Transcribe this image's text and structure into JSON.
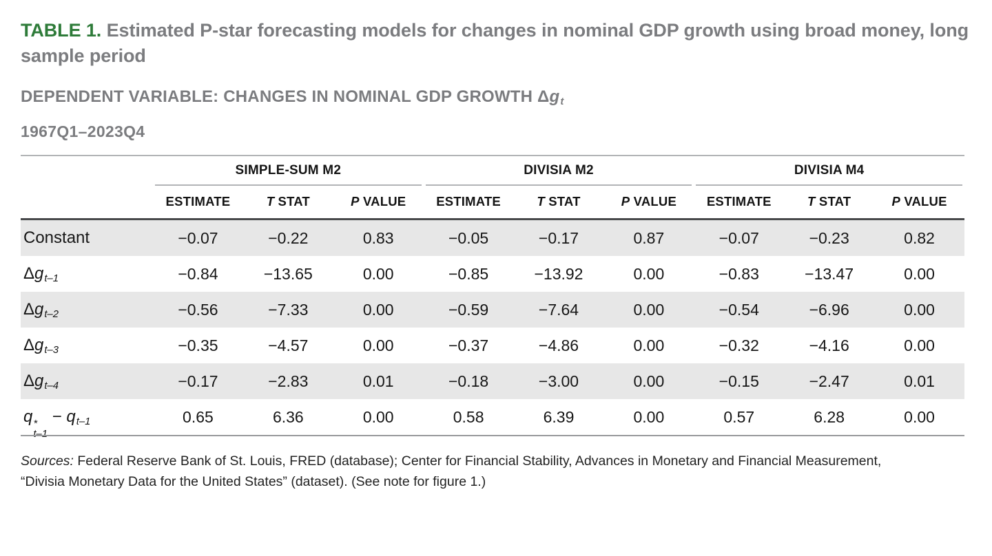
{
  "colors": {
    "accent_green": "#2e7b39",
    "heading_gray": "#7b7c7f",
    "stripe_gray": "#e7e7e7",
    "rule_light": "#b2b4b6",
    "rule_dark": "#48494b",
    "rule_bottom": "#97999c",
    "text_dark": "#1e1e1e"
  },
  "title": {
    "label": "TABLE 1.",
    "text": "Estimated P-star forecasting models for changes in nominal GDP growth using broad money, long sample period"
  },
  "dependent_variable": {
    "text": "DEPENDENT VARIABLE: CHANGES IN NOMINAL GDP GROWTH",
    "delta": "Δ",
    "variable": "g",
    "subscript": "t"
  },
  "period": "1967Q1–2023Q4",
  "table": {
    "groups": [
      "SIMPLE-SUM M2",
      "DIVISIA M2",
      "DIVISIA M4"
    ],
    "sub_headers": [
      {
        "i": "",
        "t": "ESTIMATE"
      },
      {
        "i": "T",
        "t": " STAT"
      },
      {
        "i": "P",
        "t": " VALUE"
      }
    ],
    "rows": [
      {
        "label": [
          {
            "t": "Constant"
          }
        ],
        "values": [
          "−0.07",
          "−0.22",
          "0.83",
          "−0.05",
          "−0.17",
          "0.87",
          "−0.07",
          "−0.23",
          "0.82"
        ]
      },
      {
        "label": [
          {
            "t": "Δ"
          },
          {
            "t": "g",
            "i": true
          },
          {
            "t": "t–1",
            "sub": true
          }
        ],
        "values": [
          "−0.84",
          "−13.65",
          "0.00",
          "−0.85",
          "−13.92",
          "0.00",
          "−0.83",
          "−13.47",
          "0.00"
        ]
      },
      {
        "label": [
          {
            "t": "Δ"
          },
          {
            "t": "g",
            "i": true
          },
          {
            "t": "t–2",
            "sub": true
          }
        ],
        "values": [
          "−0.56",
          "−7.33",
          "0.00",
          "−0.59",
          "−7.64",
          "0.00",
          "−0.54",
          "−6.96",
          "0.00"
        ]
      },
      {
        "label": [
          {
            "t": "Δ"
          },
          {
            "t": "g",
            "i": true
          },
          {
            "t": "t–3",
            "sub": true
          }
        ],
        "values": [
          "−0.35",
          "−4.57",
          "0.00",
          "−0.37",
          "−4.86",
          "0.00",
          "−0.32",
          "−4.16",
          "0.00"
        ]
      },
      {
        "label": [
          {
            "t": "Δ"
          },
          {
            "t": "g",
            "i": true
          },
          {
            "t": "t–4",
            "sub": true
          }
        ],
        "values": [
          "−0.17",
          "−2.83",
          "0.01",
          "−0.18",
          "−3.00",
          "0.00",
          "−0.15",
          "−2.47",
          "0.01"
        ]
      },
      {
        "label": [
          {
            "t": "q",
            "i": true
          },
          {
            "stack": {
              "sup": "*",
              "sub": "t–1"
            }
          },
          {
            "t": " − "
          },
          {
            "t": "q",
            "i": true
          },
          {
            "t": "t–1",
            "sub": true
          }
        ],
        "values": [
          "0.65",
          "6.36",
          "0.00",
          "0.58",
          "6.39",
          "0.00",
          "0.57",
          "6.28",
          "0.00"
        ]
      }
    ]
  },
  "sources": {
    "prefix": "Sources:",
    "line1": " Federal Reserve Bank of St. Louis, FRED (database); Center for Financial Stability, Advances in Monetary and Financial Measurement,",
    "line2": "“Divisia Monetary Data for the United States” (dataset). (See note for figure 1.)"
  }
}
